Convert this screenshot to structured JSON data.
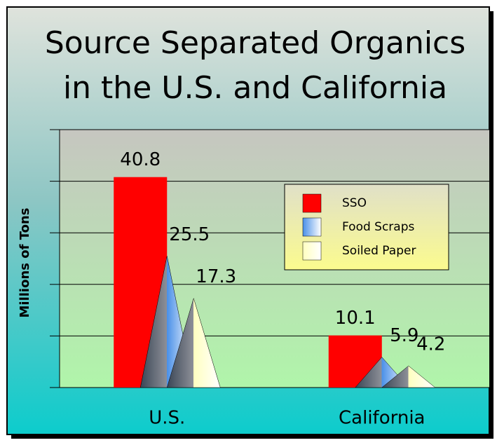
{
  "chart_data": {
    "type": "bar",
    "title": [
      "Source Separated Organics",
      "in the U.S. and California"
    ],
    "y_label": "Millions of Tons",
    "categories": [
      "U.S.",
      "California"
    ],
    "series": [
      {
        "name": "SSO",
        "color": "#ff0000",
        "shape": "rect",
        "values": [
          40.8,
          10.1
        ]
      },
      {
        "name": "Food Scraps",
        "color": "#4a90e8",
        "shape": "triangle",
        "values": [
          25.5,
          5.9
        ]
      },
      {
        "name": "Soiled Paper",
        "color": "#ffffc0",
        "shape": "triangle",
        "values": [
          17.3,
          4.2
        ]
      }
    ],
    "ylim": [
      0,
      50
    ],
    "yticks": [
      0,
      10,
      20,
      30,
      40,
      50
    ],
    "grid": true
  }
}
